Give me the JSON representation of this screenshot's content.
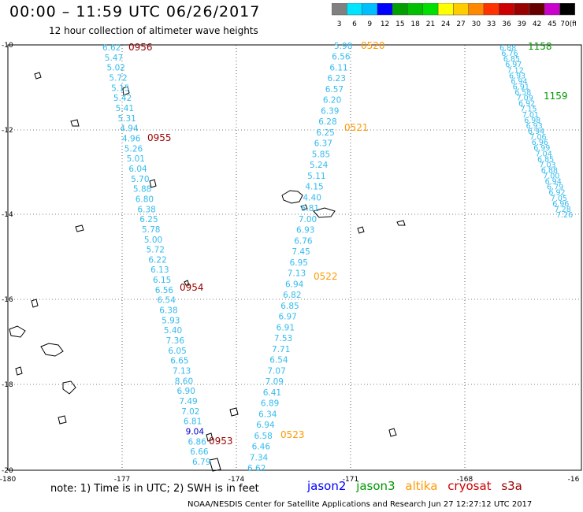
{
  "header": {
    "title": "00:00 – 11:59 UTC 06/26/2017",
    "subtitle": "12 hour collection of altimeter wave heights"
  },
  "scale": {
    "values": [
      "3",
      "6",
      "9",
      "12",
      "15",
      "18",
      "21",
      "24",
      "27",
      "30",
      "33",
      "36",
      "39",
      "42",
      "45",
      "70"
    ],
    "unit": "(ft)",
    "colors": [
      "#808080",
      "#00e5ff",
      "#00bfff",
      "#0000ff",
      "#00a000",
      "#00c000",
      "#00e000",
      "#ffff00",
      "#ffcc00",
      "#ff8800",
      "#ff3300",
      "#cc0000",
      "#990000",
      "#660000",
      "#cc00cc",
      "#000000"
    ]
  },
  "axes": {
    "lon_labels": [
      "-180",
      "-177",
      "-174",
      "-171",
      "-168",
      "-16"
    ],
    "lat_labels": [
      "-10",
      "-12",
      "-14",
      "-16",
      "-18",
      "-20"
    ]
  },
  "passes": [
    {
      "time": "0956",
      "color": "#990000"
    },
    {
      "time": "0955",
      "color": "#990000"
    },
    {
      "time": "0954",
      "color": "#990000"
    },
    {
      "time": "0953",
      "color": "#990000"
    },
    {
      "time": "0520",
      "color": "#ff9900"
    },
    {
      "time": "0521",
      "color": "#ff9900"
    },
    {
      "time": "0522",
      "color": "#ff9900"
    },
    {
      "time": "0523",
      "color": "#ff9900"
    },
    {
      "time": "1158",
      "color": "#009900"
    },
    {
      "time": "1159",
      "color": "#009900"
    }
  ],
  "tracks": {
    "track1": [
      "6.62",
      "5.47",
      "5.02",
      "5.72",
      "5.15",
      "5.42",
      "5.41",
      "5.31",
      "4.94",
      "4.96",
      "5.26",
      "5.01",
      "6.04",
      "5.70",
      "5.88",
      "6.80",
      "6.38",
      "6.25",
      "5.78",
      "5.00",
      "5.72",
      "6.22",
      "6.13",
      "6.15",
      "6.56",
      "6.54",
      "6.38",
      "5.93",
      "5.40",
      "7.36",
      "6.05",
      "6.65",
      "7.13",
      "8.60",
      "6.90",
      "7.49",
      "7.02",
      "6.81",
      "9.04",
      "6.86",
      "6.66",
      "6.79"
    ],
    "track2": [
      "5.98",
      "6.56",
      "6.11",
      "6.23",
      "6.57",
      "6.20",
      "6.39",
      "6.28",
      "6.25",
      "6.37",
      "5.85",
      "5.24",
      "5.11",
      "4.15",
      "4.40",
      "6.81",
      "7.00",
      "6.93",
      "6.76",
      "7.45",
      "6.95",
      "7.13",
      "6.94",
      "6.82",
      "6.85",
      "6.97",
      "6.91",
      "7.53",
      "7.71",
      "6.54",
      "7.07",
      "7.09",
      "6.41",
      "6.89",
      "6.34",
      "6.94",
      "6.58",
      "6.46",
      "7.34",
      "6.62"
    ],
    "track3": [
      "6.88",
      "6.76",
      "6.85",
      "6.97",
      "7.12",
      "6.93",
      "6.94",
      "6.91",
      "6.58",
      "7.09",
      "6.92",
      "7.15",
      "7.01",
      "6.98",
      "6.93",
      "6.94",
      "7.06",
      "6.96",
      "6.99",
      "7.04",
      "6.85",
      "7.03",
      "6.88",
      "7.00",
      "6.94",
      "6.79",
      "6.92",
      "7.05",
      "6.96",
      "7.28",
      "7.26"
    ]
  },
  "footer": {
    "note": "note:  1) Time is in UTC;  2) SWH is in feet",
    "credit": "NOAA/NESDIS Center for Satellite Applications and Research    Jun 27 12:27:12 UTC 2017"
  },
  "legend": [
    {
      "name": "jason2",
      "color": "#0000ff"
    },
    {
      "name": "jason3",
      "color": "#009900"
    },
    {
      "name": "altika",
      "color": "#ff9900"
    },
    {
      "name": "cryosat",
      "color": "#cc0000"
    },
    {
      "name": "s3a",
      "color": "#990000"
    }
  ]
}
